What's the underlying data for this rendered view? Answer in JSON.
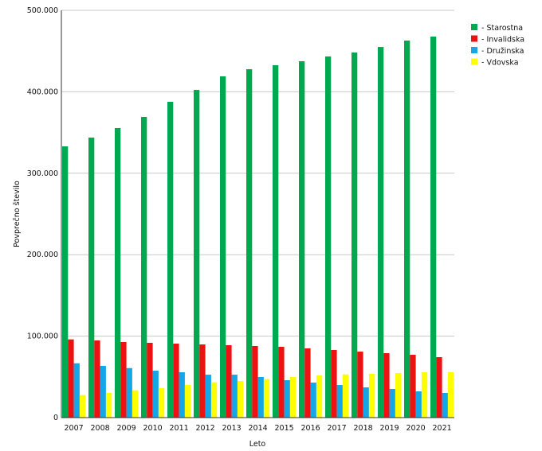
{
  "chart_data": {
    "type": "bar",
    "title": "",
    "xlabel": "Leto",
    "ylabel": "Povprečno število",
    "ylim": [
      0,
      500000
    ],
    "yticks": [
      0,
      100000,
      200000,
      300000,
      400000,
      500000
    ],
    "ytick_labels": [
      "0",
      "100.000",
      "200.000",
      "300.000",
      "400.000",
      "500.000"
    ],
    "grid": true,
    "legend_position": "top-right",
    "categories": [
      "2007",
      "2008",
      "2009",
      "2010",
      "2011",
      "2012",
      "2013",
      "2014",
      "2015",
      "2016",
      "2017",
      "2018",
      "2019",
      "2020",
      "2021"
    ],
    "series": [
      {
        "name": "- Starostna",
        "color": "#00a94f",
        "values": [
          333000,
          343800,
          355500,
          369100,
          387700,
          402300,
          419000,
          427700,
          432600,
          437500,
          443400,
          448200,
          455000,
          462900,
          467800
        ]
      },
      {
        "name": "- Invalidska",
        "color": "#ee1111",
        "values": [
          96000,
          94700,
          92800,
          91800,
          90800,
          89800,
          88900,
          87900,
          86900,
          85000,
          83000,
          81000,
          79100,
          77100,
          74200
        ]
      },
      {
        "name": "- Družinska",
        "color": "#14a7e8",
        "values": [
          66700,
          63500,
          60800,
          57600,
          55700,
          52700,
          52700,
          49800,
          45900,
          43000,
          40000,
          37100,
          35200,
          32200,
          30300
        ]
      },
      {
        "name": "- Vdovska",
        "color": "#ffff00",
        "values": [
          27600,
          30300,
          33500,
          36100,
          40000,
          43300,
          44900,
          47200,
          49800,
          51800,
          53000,
          53700,
          54700,
          55700,
          55700
        ]
      }
    ]
  }
}
